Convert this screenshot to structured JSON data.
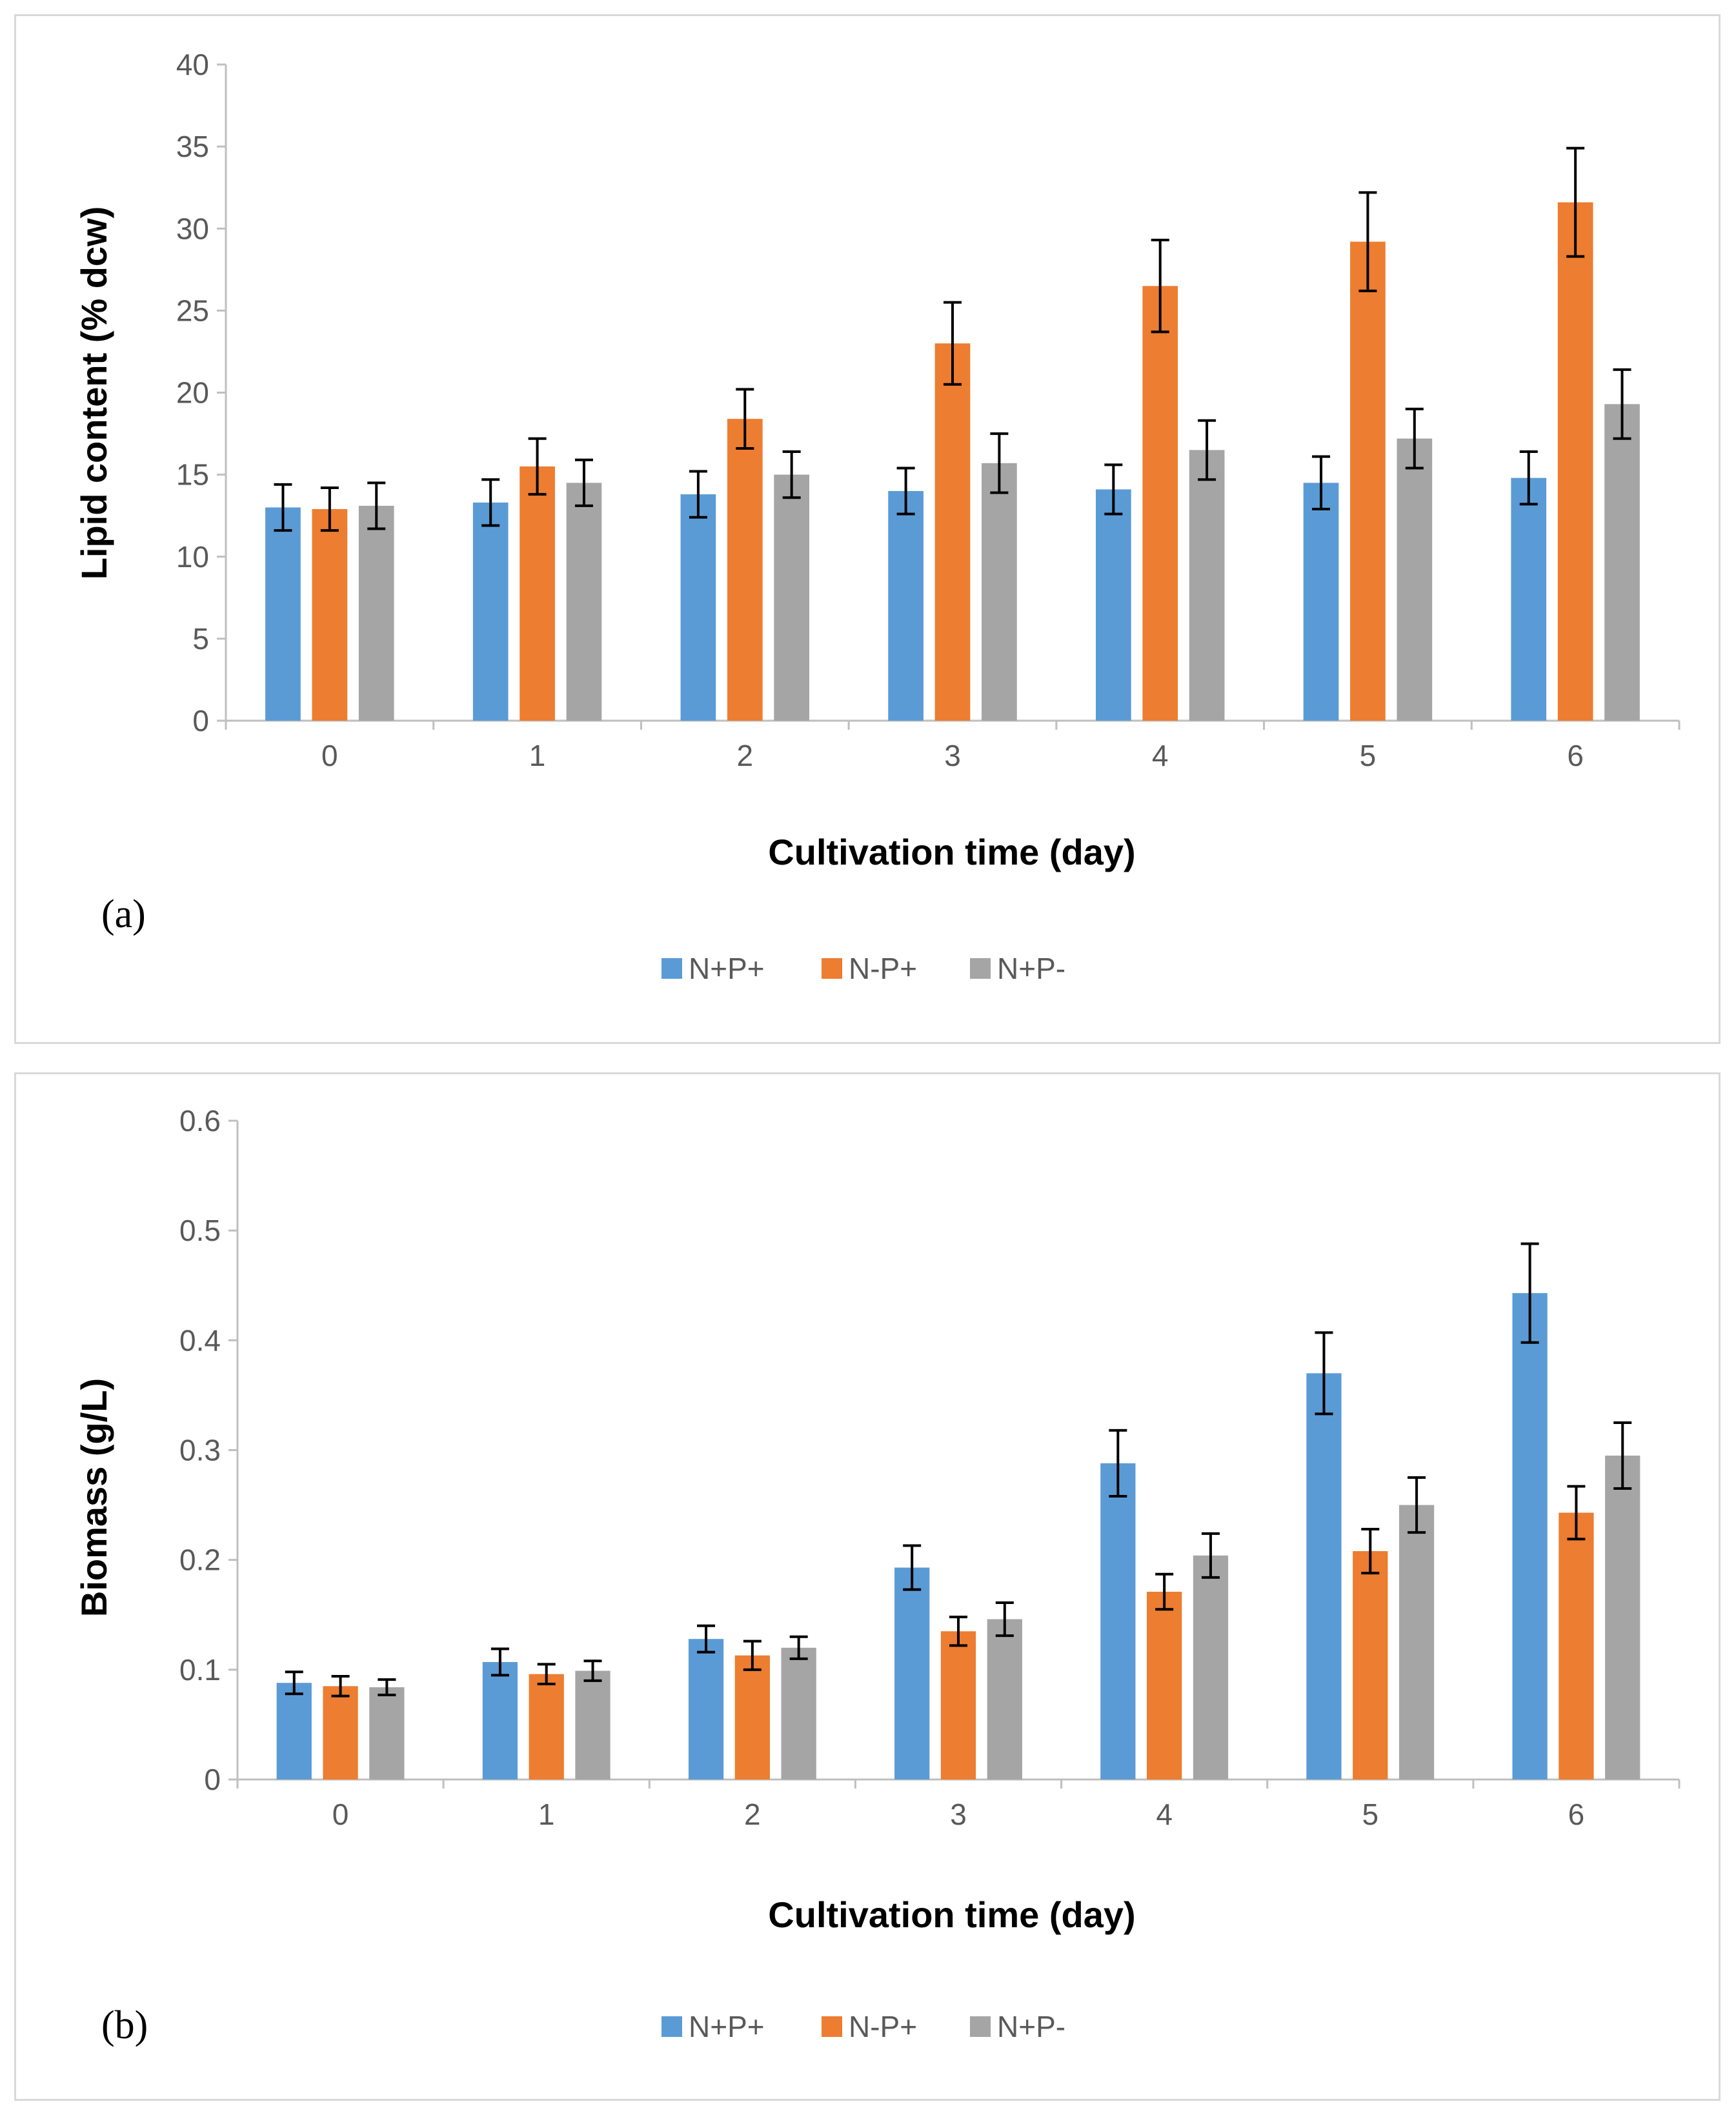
{
  "colors": {
    "N+P+": "#5b9bd5",
    "N-P+": "#ed7d31",
    "N+P-": "#a5a5a5",
    "axis": "#bfbfbf",
    "errorbar": "#000000"
  },
  "chart_data": [
    {
      "type": "bar",
      "panel_label": "(a)",
      "title": "",
      "xlabel": "Cultivation time (day)",
      "ylabel": "Lipid content  (% dcw)",
      "categories": [
        "0",
        "1",
        "2",
        "3",
        "4",
        "5",
        "6"
      ],
      "ylim": [
        0,
        40
      ],
      "yticks": [
        "0",
        "5",
        "10",
        "15",
        "20",
        "25",
        "30",
        "35",
        "40"
      ],
      "legend": [
        "N+P+",
        "N-P+",
        "N+P-"
      ],
      "legend_position": "bottom",
      "series": [
        {
          "name": "N+P+",
          "values": [
            13.0,
            13.3,
            13.8,
            14.0,
            14.1,
            14.5,
            14.8
          ],
          "errors": [
            1.4,
            1.4,
            1.4,
            1.4,
            1.5,
            1.6,
            1.6
          ]
        },
        {
          "name": "N-P+",
          "values": [
            12.9,
            15.5,
            18.4,
            23.0,
            26.5,
            29.2,
            31.6
          ],
          "errors": [
            1.3,
            1.7,
            1.8,
            2.5,
            2.8,
            3.0,
            3.3
          ]
        },
        {
          "name": "N+P-",
          "values": [
            13.1,
            14.5,
            15.0,
            15.7,
            16.5,
            17.2,
            19.3
          ],
          "errors": [
            1.4,
            1.4,
            1.4,
            1.8,
            1.8,
            1.8,
            2.1
          ]
        }
      ]
    },
    {
      "type": "bar",
      "panel_label": "(b)",
      "title": "",
      "xlabel": "Cultivation time (day)",
      "ylabel": "Biomass (g/L)",
      "categories": [
        "0",
        "1",
        "2",
        "3",
        "4",
        "5",
        "6"
      ],
      "ylim": [
        0,
        0.6
      ],
      "yticks": [
        "0",
        "0.1",
        "0.2",
        "0.3",
        "0.4",
        "0.5",
        "0.6"
      ],
      "legend": [
        "N+P+",
        "N-P+",
        "N+P-"
      ],
      "legend_position": "bottom",
      "series": [
        {
          "name": "N+P+",
          "values": [
            0.088,
            0.107,
            0.128,
            0.193,
            0.288,
            0.37,
            0.443
          ],
          "errors": [
            0.01,
            0.012,
            0.012,
            0.02,
            0.03,
            0.037,
            0.045
          ]
        },
        {
          "name": "N-P+",
          "values": [
            0.085,
            0.096,
            0.113,
            0.135,
            0.171,
            0.208,
            0.243
          ],
          "errors": [
            0.009,
            0.009,
            0.013,
            0.013,
            0.016,
            0.02,
            0.024
          ]
        },
        {
          "name": "N+P-",
          "values": [
            0.084,
            0.099,
            0.12,
            0.146,
            0.204,
            0.25,
            0.295
          ],
          "errors": [
            0.007,
            0.009,
            0.01,
            0.015,
            0.02,
            0.025,
            0.03
          ]
        }
      ]
    }
  ]
}
